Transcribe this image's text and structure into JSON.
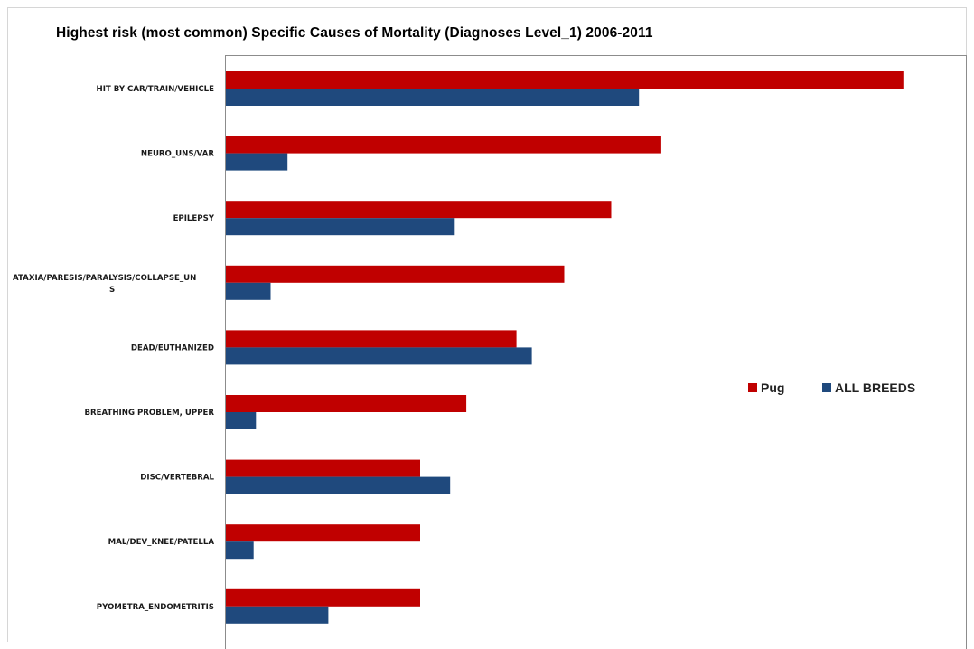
{
  "chart_data": {
    "type": "bar",
    "orientation": "horizontal",
    "title": "Highest risk (most common) Specific Causes of Mortality (Diagnoses Level_1) 2006-2011",
    "categories": [
      [
        "HIT BY CAR/TRAIN/VEHICLE"
      ],
      [
        "NEURO_UNS/VAR"
      ],
      [
        "EPILEPSY"
      ],
      [
        "ATAXIA/PARESIS/PARALYSIS/COLLAPSE_UN",
        "S"
      ],
      [
        "DEAD/EUTHANIZED"
      ],
      [
        "BREATHING PROBLEM, UPPER"
      ],
      [
        "DISC/VERTEBRAL"
      ],
      [
        "MAL/DEV_KNEE/PATELLA"
      ],
      [
        "PYOMETRA_ENDOMETRITIS"
      ]
    ],
    "series": [
      {
        "name": "Pug",
        "color": "#c00000",
        "values": [
          8.79,
          5.65,
          5.0,
          4.39,
          3.77,
          3.12,
          2.52,
          2.52,
          2.52
        ]
      },
      {
        "name": "ALL BREEDS",
        "color": "#1f497d",
        "values": [
          5.36,
          0.8,
          2.97,
          0.58,
          3.97,
          0.39,
          2.91,
          0.36,
          1.33
        ]
      }
    ],
    "xlim": [
      0,
      9.5
    ],
    "grid": false,
    "axis_ticks_shown": false,
    "legend_position": "right"
  }
}
